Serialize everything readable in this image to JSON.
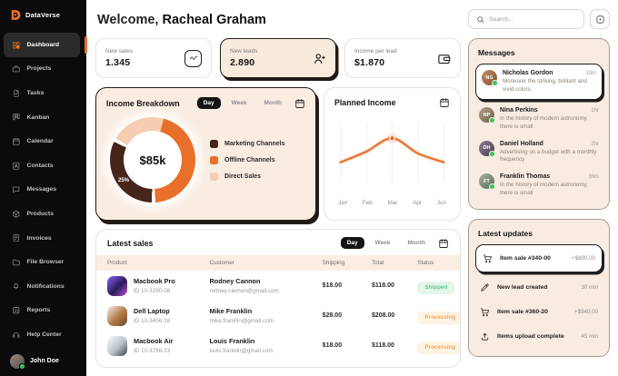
{
  "app": {
    "name": "DataVerse"
  },
  "colors": {
    "accent_orange": "#e8702a",
    "dark_brown": "#46261a",
    "light_peach": "#f6cdb2",
    "sidebar_bg": "#0b0b0b",
    "card_cream": "#f9ece1",
    "status_shipped": "#6cc494",
    "status_processing": "#f1a65b"
  },
  "sidebar": {
    "items": [
      {
        "label": "Dashboard",
        "icon": "grid",
        "active": true
      },
      {
        "label": "Projects",
        "icon": "briefcase"
      },
      {
        "label": "Tasks",
        "icon": "task"
      },
      {
        "label": "Kanban",
        "icon": "kanban"
      },
      {
        "label": "Calendar",
        "icon": "calendar"
      },
      {
        "label": "Contacts",
        "icon": "contacts"
      },
      {
        "label": "Messages",
        "icon": "chat"
      },
      {
        "label": "Products",
        "icon": "box"
      },
      {
        "label": "Invoices",
        "icon": "invoice"
      },
      {
        "label": "File Browser",
        "icon": "folder"
      },
      {
        "label": "Notifications",
        "icon": "bell"
      },
      {
        "label": "Reports",
        "icon": "report"
      },
      {
        "label": "Help Center",
        "icon": "headset"
      }
    ],
    "user": {
      "name": "John Doe",
      "status": "online"
    }
  },
  "header": {
    "welcome_prefix": "Welcome,",
    "user_name": "Racheal Graham"
  },
  "stats": [
    {
      "label": "New sales",
      "value": "1.345",
      "icon": "trend",
      "boxed_icon": true,
      "highlight": false
    },
    {
      "label": "New leads",
      "value": "2.890",
      "icon": "user-plus",
      "boxed_icon": false,
      "highlight": true
    },
    {
      "label": "Income per lead",
      "value": "$1.870",
      "icon": "wallet",
      "boxed_icon": false,
      "highlight": false
    }
  ],
  "income_breakdown": {
    "title": "Income Breakdown",
    "toggle_options": [
      "Day",
      "Week",
      "Month"
    ],
    "active_toggle": "Day",
    "center_value": "$85k",
    "segment_annotation": "25%"
  },
  "planned_income": {
    "title": "Planned Income"
  },
  "chart_data": [
    {
      "type": "pie",
      "variant": "donut",
      "title": "Income Breakdown",
      "center_label": "$85k",
      "annotation": "25%",
      "legend_position": "right",
      "series": [
        {
          "name": "Offline Channels",
          "value": 42,
          "color": "#e8702a"
        },
        {
          "name": "Marketing Channels",
          "value": 33,
          "color": "#46261a"
        },
        {
          "name": "Direct Sales",
          "value": 25,
          "color": "#f6cdb2"
        }
      ],
      "legend_order": [
        {
          "label": "Marketing Channels",
          "color": "#46261a"
        },
        {
          "label": "Offline Channels",
          "color": "#e8702a"
        },
        {
          "label": "Direct Sales",
          "color": "#f6cdb2"
        }
      ]
    },
    {
      "type": "line",
      "title": "Planned Income",
      "x": [
        "Jan",
        "Feb",
        "Mar",
        "Apr",
        "Jun"
      ],
      "y": [
        30,
        47,
        68,
        44,
        30
      ],
      "highlight_x": "Mar",
      "color": "#e8702a",
      "grid": "vertical"
    }
  ],
  "latest_sales": {
    "title": "Latest sales",
    "toggle_options": [
      "Day",
      "Week",
      "Month"
    ],
    "active_toggle": "Day",
    "columns": [
      "Product",
      "Customer",
      "Shipping",
      "Total",
      "Status"
    ],
    "rows": [
      {
        "product": "Macbook Pro",
        "product_id": "ID 10-3290-08",
        "customer": "Rodney Cannon",
        "email": "rodney.cannon@gmail.com",
        "shipping": "$18.00",
        "total": "$118.00",
        "status": "Shipped"
      },
      {
        "product": "Dell Laptop",
        "product_id": "ID 10-3456-18",
        "customer": "Mike Franklin",
        "email": "mike.franklin@gmail.com",
        "shipping": "$28.00",
        "total": "$208.00",
        "status": "Processing"
      },
      {
        "product": "Macbook Air",
        "product_id": "ID 10-3786-23",
        "customer": "Louis Franklin",
        "email": "louis.franklin@gmail.com",
        "shipping": "$18.00",
        "total": "$118.00",
        "status": "Processing"
      }
    ]
  },
  "search": {
    "placeholder": "Search..."
  },
  "messages": {
    "title": "Messages",
    "items": [
      {
        "name": "Nicholas Gordon",
        "time": "10m",
        "text": "Moreover the striking, brilliant and vivid colors.",
        "highlight": true
      },
      {
        "name": "Nina Perkins",
        "time": "1hr",
        "text": "In the history of modern astronomy, there is small",
        "highlight": false
      },
      {
        "name": "Daniel Holland",
        "time": "2hr",
        "text": "Advertising on a budget with a monthly frequency",
        "highlight": false
      },
      {
        "name": "Franklin Thomas",
        "time": "3hrs",
        "text": "In the history of modern astronomy, there is small",
        "highlight": false
      }
    ]
  },
  "latest_updates": {
    "title": "Latest updates",
    "items": [
      {
        "label": "Item sale #340-00",
        "value": "+$890.00",
        "icon": "cart",
        "highlight": true
      },
      {
        "label": "New lead created",
        "value": "30 min",
        "icon": "pencil",
        "highlight": false
      },
      {
        "label": "Item sale #360-20",
        "value": "+$940.00",
        "icon": "cart",
        "highlight": false
      },
      {
        "label": "Items upload complete",
        "value": "45 min",
        "icon": "upload",
        "highlight": false
      }
    ]
  }
}
